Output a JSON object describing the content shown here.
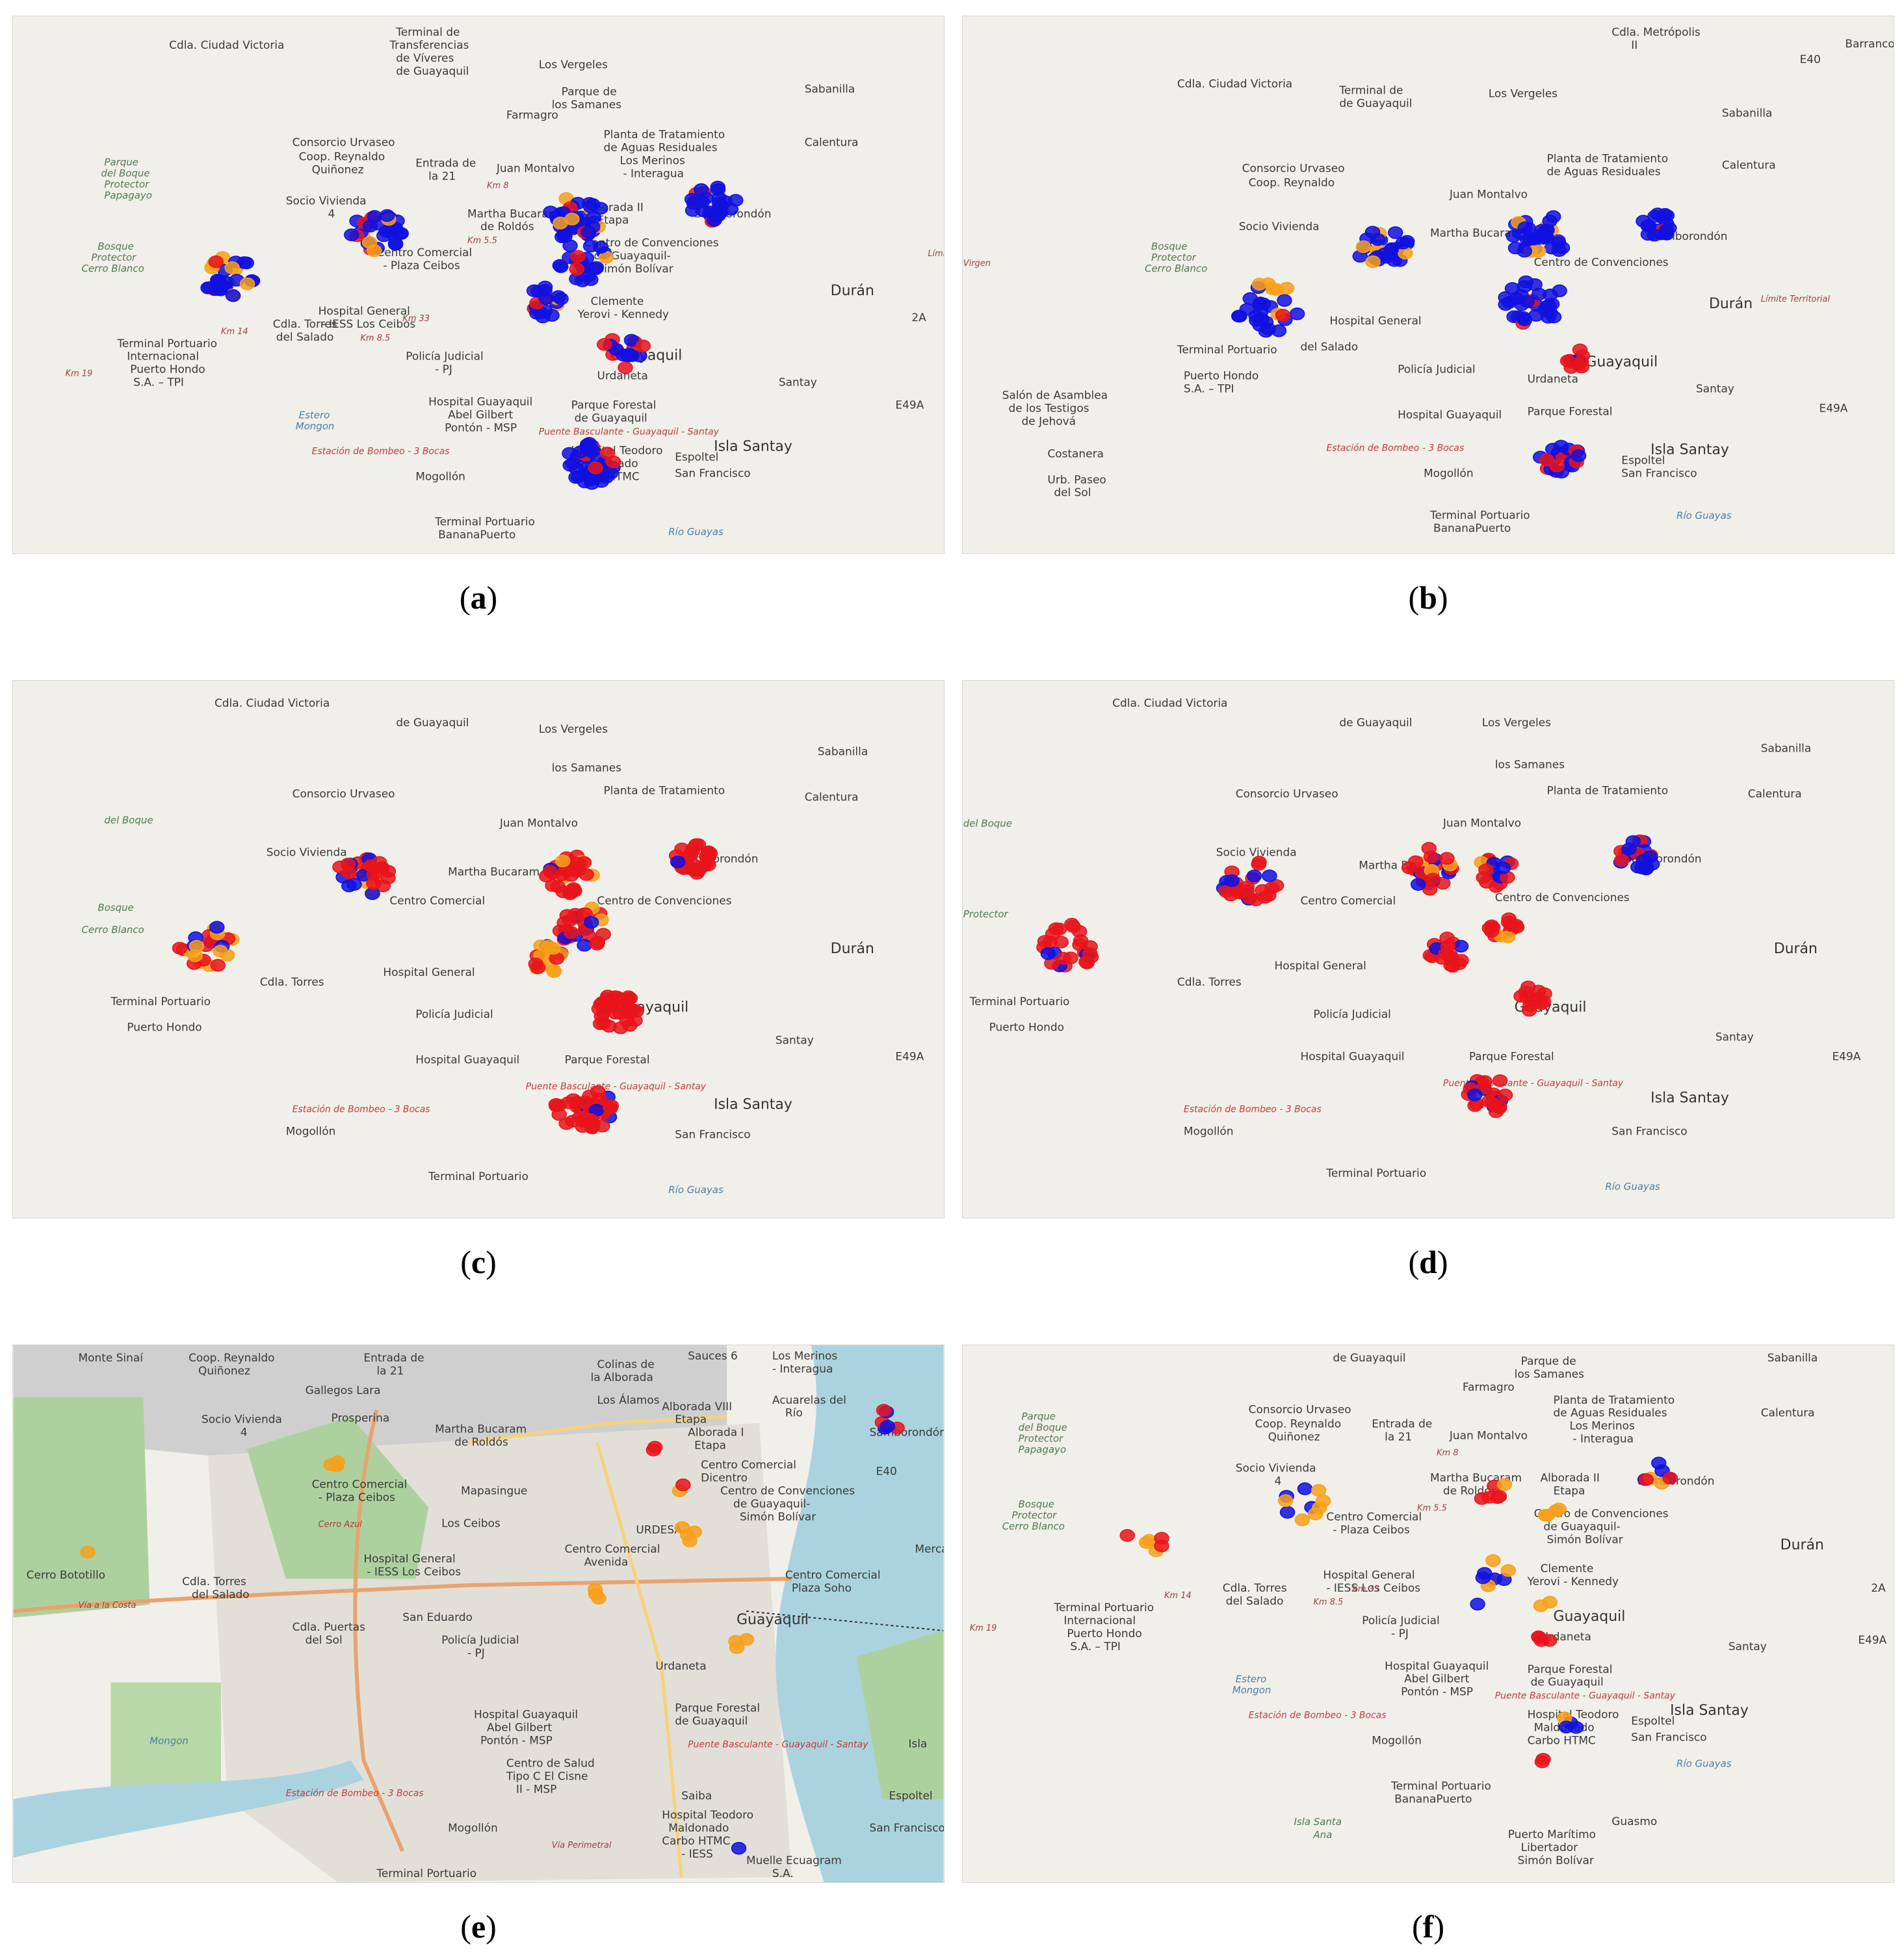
{
  "colors": {
    "land": "#f1efe9",
    "urban": "#cfcfcf",
    "water": "#aad3df",
    "park": "#add19e",
    "forest": "#9bc98a",
    "road_major": "#f7d27a",
    "road_primary": "#e9a36e",
    "marker_red": "#e8141b",
    "marker_blue": "#1010e0",
    "marker_orange": "#f7a01a"
  },
  "labels_common": {
    "ciudad_victoria": "Cdla. Ciudad Victoria",
    "terminal_viveres_1": "Terminal de",
    "terminal_viveres_2": "Transferencias",
    "terminal_viveres_3": "de Víveres",
    "terminal_viveres_4": "de Guayaquil",
    "los_vergeles": "Los Vergeles",
    "parque_samanes_1": "Parque de",
    "parque_samanes_2": "los Samanes",
    "farmagro": "Farmagro",
    "consorcio": "Consorcio Urvaseo",
    "coop_reynaldo_1": "Coop. Reynaldo",
    "coop_reynaldo_2": "Quiñonez",
    "entrada_21_1": "Entrada de",
    "entrada_21_2": "la 21",
    "juan_montalvo": "Juan Montalvo",
    "planta_1": "Planta de Tratamiento",
    "planta_2": "de Aguas Residuales",
    "planta_3": "Los Merinos",
    "planta_4": "- Interagua",
    "sabanilla": "Sabanilla",
    "calentura": "Calentura",
    "boque_1": "Parque",
    "boque_2": "del Boque",
    "boque_3": "Protector",
    "boque_4": "Papagayo",
    "socio_1": "Socio Vivienda",
    "socio_2": "4",
    "martha_1": "Martha Bucaram",
    "martha_2": "de Roldós",
    "alborada_1": "Alborada II",
    "alborada_2": "Etapa",
    "bosque_1": "Bosque",
    "bosque_2": "Protector",
    "bosque_3": "Cerro Blanco",
    "cc_ceibos_1": "Centro Comercial",
    "cc_ceibos_2": "- Plaza Ceibos",
    "convenciones_1": "Centro de Convenciones",
    "convenciones_2": "de Guayaquil-",
    "convenciones_3": "Simón Bolívar",
    "samborondon": "Samborondón",
    "duran": "Durán",
    "hospital_ceibos_1": "Hospital General",
    "hospital_ceibos_2": "- IESS Los Ceibos",
    "kennedy_1": "Clemente",
    "kennedy_2": "Yerovi - Kennedy",
    "torres_1": "Cdla. Torres",
    "torres_2": "del Salado",
    "terminal_hondo_1": "Terminal Portuario",
    "terminal_hondo_2": "Internacional",
    "terminal_hondo_3": "Puerto Hondo",
    "terminal_hondo_4": "S.A. – TPI",
    "policia_1": "Policía Judicial",
    "policia_2": "- PJ",
    "guayaquil": "Guayaquil",
    "urdaneta": "Urdaneta",
    "santay": "Santay",
    "hospital_abel_1": "Hospital Guayaquil",
    "hospital_abel_2": "Abel Gilbert",
    "hospital_abel_3": "Pontón - MSP",
    "parque_forestal_1": "Parque Forestal",
    "parque_forestal_2": "de Guayaquil",
    "puente": "Puente Basculante - Guayaquil - Santay",
    "isla_santay": "Isla Santay",
    "estero_1": "Estero",
    "estero_2": "Mongon",
    "bombeo": "Estación de Bombeo - 3 Bocas",
    "hospital_teodoro_1": "Hospital Teodoro",
    "hospital_teodoro_2": "Maldonado",
    "hospital_teodoro_3": "Carbo HTMC",
    "hospital_teodoro_4": "- IESS",
    "espoltel": "Espoltel",
    "san_francisco": "San Francisco",
    "mogollon": "Mogollón",
    "terminal_banana_1": "Terminal Portuario",
    "terminal_banana_2": "BananaPuerto",
    "rio_guayas": "Río Guayas",
    "e49a": "E49A",
    "km_19": "Km 19",
    "km_14": "Km 14",
    "km_85": "Km 8.5",
    "km_33": "Km 33",
    "km_55": "Km 5.5",
    "km_8": "Km 8",
    "limite": "Límite Territorial",
    "road_2a": "2A",
    "road_e40": "E40"
  },
  "labels_b": {
    "metropolis_1": "Cdla. Metrópolis",
    "metropolis_2": "II",
    "barranco": "Barranco",
    "salon_1": "Salón de Asamblea",
    "salon_2": "de los Testigos",
    "salon_3": "de Jehová",
    "costanera": "Costanera",
    "paseo_1": "Urb. Paseo",
    "paseo_2": "del Sol",
    "virgen": "Virgen"
  },
  "labels_e": {
    "monte_sinai": "Monte Sinaí",
    "gallegos": "Gallegos Lara",
    "prosperina": "Prosperina",
    "colinas_1": "Colinas de",
    "colinas_2": "la Alborada",
    "los_alamos": "Los Álamos",
    "sauces": "Sauces 6",
    "acuarelas_1": "Acuarelas del",
    "acuarelas_2": "Río",
    "alborada_viii": "Alborada VIII",
    "alborada_i": "Alborada I",
    "etapa": "Etapa",
    "cc_dicentro_1": "Centro Comercial",
    "cc_dicentro_2": "Dicentro",
    "mapasingue": "Mapasingue",
    "los_ceibos": "Los Ceibos",
    "cerro_azul": "Cerro Azul",
    "cerro_bototillo": "Cerro Bototillo",
    "via_costa": "Vía a la Costa",
    "cc_avenida_1": "Centro Comercial",
    "cc_avenida_2": "Avenida",
    "urdesa": "URDESA",
    "san_eduardo": "San Eduardo",
    "puertas_1": "Cdla. Puertas",
    "puertas_2": "del Sol",
    "plaza_soho_1": "Centro Comercial",
    "plaza_soho_2": "Plaza Soho",
    "salud_1": "Centro de Salud",
    "salud_2": "Tipo C El Cisne",
    "salud_3": "II - MSP",
    "saiba": "Saiba",
    "muelle_1": "Muelle Ecuagram",
    "muelle_2": "S.A.",
    "via_perimetral": "Vía Perimetral",
    "isla": "Isla",
    "merca": "Merca"
  },
  "labels_f": {
    "isla_santa_ana_1": "Isla Santa",
    "isla_santa_ana_2": "Ana",
    "guasmo": "Guasmo",
    "puerto_1": "Puerto Marítimo",
    "puerto_2": "Libertador",
    "puerto_3": "Simón Bolívar"
  },
  "captions": {
    "a_open": "(",
    "a": "a",
    "a_close": ")",
    "b_open": "(",
    "b": "b",
    "b_close": ")",
    "c_open": "(",
    "c": "c",
    "c_close": ")",
    "d_open": "(",
    "d": "d",
    "d_close": ")",
    "e_open": "(",
    "e": "e",
    "e_close": ")",
    "f_open": "(",
    "f": "f",
    "f_close": ")"
  }
}
